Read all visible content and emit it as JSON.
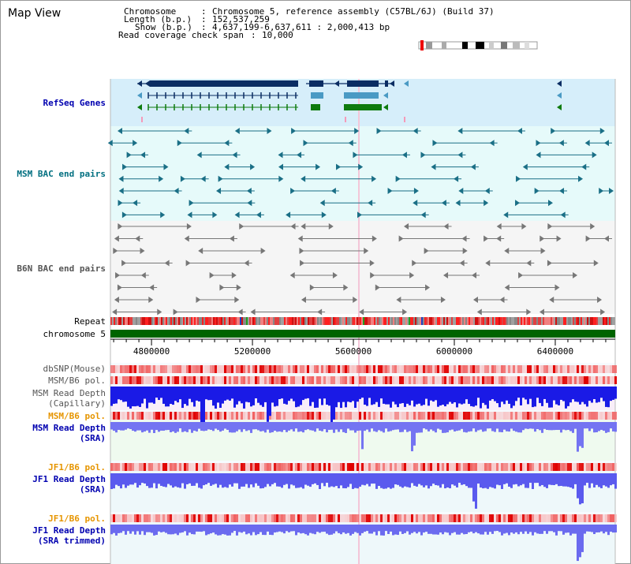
{
  "title": "Map View",
  "info": {
    "chromosome_label": "Chromosome",
    "chromosome_value": "Chromosome 5, reference assembly (C57BL/6J) (Build 37)",
    "length_label": "Length (b.p.)",
    "length_value": "152,537,259",
    "show_label": "Show (b.p.)",
    "show_value": "4,637,199-6,637,611 : 2,000,413 bp",
    "coverage_label": "Read coverage check span",
    "coverage_value": "10,000"
  },
  "tracks": {
    "refseq": "RefSeq Genes",
    "msm_bac": "MSM BAC end pairs",
    "b6n_bac": "B6N BAC end pairs",
    "repeat": "Repeat",
    "chromosome": "chromosome 5",
    "dbsnp": "dbSNP(Mouse)",
    "msm_b6_pol": "MSM/B6 pol.",
    "msm_depth_cap_1": "MSM Read Depth",
    "msm_depth_cap_2": "(Capillary)",
    "msm_b6_pol_2": "MSM/B6 pol.",
    "msm_depth_sra_1": "MSM Read Depth",
    "msm_depth_sra_2": "(SRA)",
    "jf1_b6_pol": "JF1/B6 pol.",
    "jf1_depth_1": "JF1 Read Depth",
    "jf1_depth_2": "(SRA)",
    "jf1_b6_pol_2": "JF1/B6 pol.",
    "jf1_trim_1": "JF1 Read Depth",
    "jf1_trim_2": "(SRA trimmed)"
  },
  "axis_ticks": [
    "4800000",
    "5200000",
    "5600000",
    "6000000",
    "6400000"
  ],
  "colors": {
    "refseq_bg": "#d6eefa",
    "bac_bg": "#e6fafa",
    "navy": "#0b2d63",
    "steel": "#4a9ac4",
    "green": "#0e7b0e",
    "teal": "#1a6f86",
    "gray": "#777777",
    "chrom": "#006400",
    "depth_blue": "#1a1ae6",
    "depth_light": "#6a6af0",
    "label_blue": "#0000b0",
    "label_orange": "#e69500",
    "label_teal": "#006f80"
  }
}
